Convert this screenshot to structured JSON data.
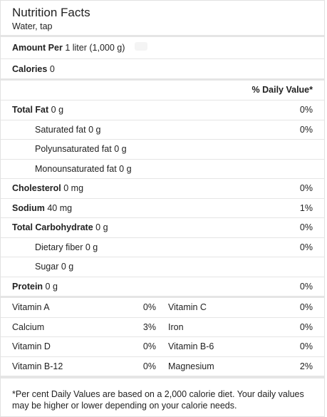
{
  "header": {
    "title": "Nutrition Facts",
    "subtitle": "Water, tap"
  },
  "amount": {
    "label": "Amount Per",
    "value": "1 liter (1,000 g)"
  },
  "calories": {
    "label": "Calories",
    "value": "0"
  },
  "daily_value_header": "% Daily Value*",
  "nutrients": [
    {
      "label": "Total Fat",
      "amount": "0 g",
      "pct": "0%",
      "bold": true,
      "indent": false
    },
    {
      "label": "Saturated fat",
      "amount": "0 g",
      "pct": "0%",
      "bold": false,
      "indent": true
    },
    {
      "label": "Polyunsaturated fat",
      "amount": "0 g",
      "pct": "",
      "bold": false,
      "indent": true
    },
    {
      "label": "Monounsaturated fat",
      "amount": "0 g",
      "pct": "",
      "bold": false,
      "indent": true
    },
    {
      "label": "Cholesterol",
      "amount": "0 mg",
      "pct": "0%",
      "bold": true,
      "indent": false
    },
    {
      "label": "Sodium",
      "amount": "40 mg",
      "pct": "1%",
      "bold": true,
      "indent": false
    },
    {
      "label": "Total Carbohydrate",
      "amount": "0 g",
      "pct": "0%",
      "bold": true,
      "indent": false
    },
    {
      "label": "Dietary fiber",
      "amount": "0 g",
      "pct": "0%",
      "bold": false,
      "indent": true
    },
    {
      "label": "Sugar",
      "amount": "0 g",
      "pct": "",
      "bold": false,
      "indent": true
    },
    {
      "label": "Protein",
      "amount": "0 g",
      "pct": "0%",
      "bold": true,
      "indent": false
    }
  ],
  "vitamins": [
    {
      "left_label": "Vitamin A",
      "left_pct": "0%",
      "right_label": "Vitamin C",
      "right_pct": "0%"
    },
    {
      "left_label": "Calcium",
      "left_pct": "3%",
      "right_label": "Iron",
      "right_pct": "0%"
    },
    {
      "left_label": "Vitamin D",
      "left_pct": "0%",
      "right_label": "Vitamin B-6",
      "right_pct": "0%"
    },
    {
      "left_label": "Vitamin B-12",
      "left_pct": "0%",
      "right_label": "Magnesium",
      "right_pct": "2%"
    }
  ],
  "footnote": "*Per cent Daily Values are based on a 2,000 calorie diet. Your daily values may be higher or lower depending on your calorie needs."
}
